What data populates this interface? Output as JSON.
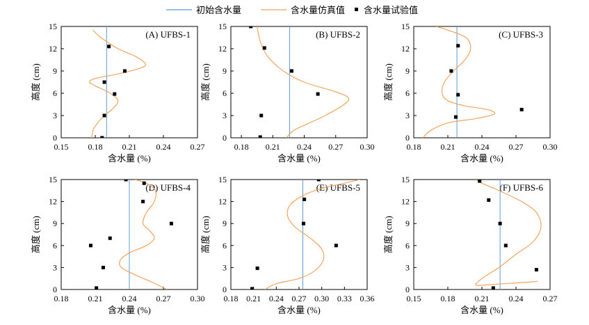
{
  "colors": {
    "initial": "#5b9bd5",
    "simulated": "#f4a460",
    "experimental": "#000000"
  },
  "legend": {
    "initial": "初始含水量",
    "simulated": "含水量仿真值",
    "experimental": "含水量试验值"
  },
  "chart_data": [
    {
      "type": "line",
      "title": "(A) UFBS-1",
      "xlabel": "含水量 (%)",
      "ylabel": "高度 (cm)",
      "xlim": [
        0.15,
        0.27
      ],
      "ylim": [
        0,
        15
      ],
      "xticks": [
        0.15,
        0.18,
        0.21,
        0.24,
        0.27
      ],
      "xtick_labels": [
        "0.15",
        "0.18",
        "0.21",
        "0.24",
        "0.27"
      ],
      "yticks": [
        0,
        3,
        6,
        9,
        12,
        15
      ],
      "ytick_labels": [
        "0",
        "3",
        "6",
        "9",
        "12",
        "15"
      ],
      "initial": 0.19,
      "simulated": [
        [
          0.177,
          0
        ],
        [
          0.178,
          1
        ],
        [
          0.182,
          2
        ],
        [
          0.188,
          3
        ],
        [
          0.196,
          4
        ],
        [
          0.2,
          5
        ],
        [
          0.193,
          6
        ],
        [
          0.18,
          7
        ],
        [
          0.175,
          7.5
        ],
        [
          0.18,
          8
        ],
        [
          0.2,
          8.6
        ],
        [
          0.22,
          9.4
        ],
        [
          0.224,
          10
        ],
        [
          0.215,
          11
        ],
        [
          0.2,
          12
        ],
        [
          0.185,
          13.5
        ],
        [
          0.178,
          14.5
        ]
      ],
      "experimental": [
        [
          0.186,
          0
        ],
        [
          0.188,
          3
        ],
        [
          0.197,
          5.9
        ],
        [
          0.188,
          7.5
        ],
        [
          0.206,
          9
        ],
        [
          0.192,
          12.3
        ]
      ]
    },
    {
      "type": "line",
      "title": "(B) UFBS-2",
      "xlabel": "含水量 (%)",
      "ylabel": "高度 (cm)",
      "xlim": [
        0.17,
        0.3
      ],
      "ylim": [
        0,
        15
      ],
      "xticks": [
        0.18,
        0.21,
        0.24,
        0.27,
        0.3
      ],
      "xtick_labels": [
        "0.18",
        "0.21",
        "0.24",
        "0.27",
        "0.30"
      ],
      "yticks": [
        0,
        3,
        6,
        9,
        12,
        15
      ],
      "ytick_labels": [
        "0",
        "3",
        "6",
        "9",
        "12",
        "15"
      ],
      "initial": 0.226,
      "simulated": [
        [
          0.223,
          0
        ],
        [
          0.23,
          1
        ],
        [
          0.245,
          2
        ],
        [
          0.26,
          3
        ],
        [
          0.278,
          4.5
        ],
        [
          0.282,
          5.4
        ],
        [
          0.27,
          6.2
        ],
        [
          0.24,
          7.5
        ],
        [
          0.22,
          9
        ],
        [
          0.205,
          11
        ],
        [
          0.198,
          13
        ],
        [
          0.195,
          15
        ]
      ],
      "experimental": [
        [
          0.198,
          0.1
        ],
        [
          0.199,
          3
        ],
        [
          0.253,
          5.9
        ],
        [
          0.228,
          9
        ],
        [
          0.202,
          12.1
        ],
        [
          0.189,
          15
        ]
      ]
    },
    {
      "type": "line",
      "title": "(C) UFBS-3",
      "xlabel": "含水量 (%)",
      "ylabel": "高度 (cm)",
      "xlim": [
        0.18,
        0.3
      ],
      "ylim": [
        0,
        15
      ],
      "xticks": [
        0.18,
        0.21,
        0.24,
        0.27,
        0.3
      ],
      "xtick_labels": [
        "0.18",
        "0.21",
        "0.24",
        "0.27",
        "0.30"
      ],
      "yticks": [
        0,
        3,
        6,
        9,
        12,
        15
      ],
      "ytick_labels": [
        "0",
        "3",
        "6",
        "9",
        "12",
        "15"
      ],
      "initial": 0.218,
      "simulated": [
        [
          0.188,
          0
        ],
        [
          0.195,
          1
        ],
        [
          0.21,
          2
        ],
        [
          0.235,
          2.6
        ],
        [
          0.251,
          3.2
        ],
        [
          0.245,
          3.8
        ],
        [
          0.225,
          4.3
        ],
        [
          0.21,
          5
        ],
        [
          0.205,
          6
        ],
        [
          0.207,
          7.5
        ],
        [
          0.215,
          9
        ],
        [
          0.225,
          10.5
        ],
        [
          0.23,
          12
        ],
        [
          0.226,
          13.5
        ],
        [
          0.21,
          14.5
        ],
        [
          0.2,
          15
        ]
      ],
      "experimental": [
        [
          0.217,
          2.8
        ],
        [
          0.275,
          3.8
        ],
        [
          0.219,
          5.8
        ],
        [
          0.213,
          9
        ],
        [
          0.219,
          12.4
        ]
      ]
    },
    {
      "type": "line",
      "title": "(D) UFBS-4",
      "xlabel": "含水量 (%)",
      "ylabel": "高度 (cm)",
      "xlim": [
        0.18,
        0.3
      ],
      "ylim": [
        0,
        15
      ],
      "xticks": [
        0.18,
        0.21,
        0.24,
        0.27,
        0.3
      ],
      "xtick_labels": [
        "0.18",
        "0.21",
        "0.24",
        "0.27",
        "0.30"
      ],
      "yticks": [
        0,
        3,
        6,
        9,
        12,
        15
      ],
      "ytick_labels": [
        "0",
        "3",
        "6",
        "9",
        "12",
        "15"
      ],
      "initial": 0.24,
      "simulated": [
        [
          0.273,
          0
        ],
        [
          0.26,
          1
        ],
        [
          0.245,
          2
        ],
        [
          0.233,
          3
        ],
        [
          0.232,
          4
        ],
        [
          0.24,
          5
        ],
        [
          0.255,
          6
        ],
        [
          0.262,
          7
        ],
        [
          0.258,
          8
        ],
        [
          0.252,
          9
        ],
        [
          0.255,
          10.5
        ],
        [
          0.262,
          12
        ],
        [
          0.263,
          13.5
        ],
        [
          0.255,
          14.5
        ],
        [
          0.245,
          15
        ]
      ],
      "experimental": [
        [
          0.211,
          0.2
        ],
        [
          0.217,
          3
        ],
        [
          0.223,
          7
        ],
        [
          0.206,
          6
        ],
        [
          0.277,
          9
        ],
        [
          0.252,
          12
        ],
        [
          0.253,
          14.5
        ],
        [
          0.237,
          15
        ]
      ]
    },
    {
      "type": "line",
      "title": "(E) UFBS-5",
      "xlabel": "含水量 (%)",
      "ylabel": "高度 (cm)",
      "xlim": [
        0.18,
        0.36
      ],
      "ylim": [
        0,
        15
      ],
      "xticks": [
        0.18,
        0.21,
        0.24,
        0.27,
        0.3,
        0.33,
        0.36
      ],
      "xtick_labels": [
        "0.18",
        "0.21",
        "0.24",
        "0.27",
        "0.30",
        "0.33",
        "0.36"
      ],
      "yticks": [
        0,
        3,
        6,
        9,
        12,
        15
      ],
      "ytick_labels": [
        "0",
        "3",
        "6",
        "9",
        "12",
        "15"
      ],
      "initial": 0.275,
      "simulated": [
        [
          0.225,
          0
        ],
        [
          0.24,
          0.8
        ],
        [
          0.27,
          1.5
        ],
        [
          0.29,
          2.5
        ],
        [
          0.302,
          4
        ],
        [
          0.3,
          5.5
        ],
        [
          0.285,
          7
        ],
        [
          0.265,
          8.5
        ],
        [
          0.255,
          10
        ],
        [
          0.258,
          11.5
        ],
        [
          0.275,
          12.8
        ],
        [
          0.3,
          13.8
        ],
        [
          0.33,
          14.5
        ],
        [
          0.35,
          15
        ]
      ],
      "experimental": [
        [
          0.208,
          0.1
        ],
        [
          0.215,
          2.9
        ],
        [
          0.319,
          6
        ],
        [
          0.276,
          9
        ],
        [
          0.277,
          12.3
        ],
        [
          0.296,
          15
        ]
      ]
    },
    {
      "type": "line",
      "title": "(F) UFBS-6",
      "xlabel": "含水量 (%)",
      "ylabel": "高度 (cm)",
      "xlim": [
        0.15,
        0.27
      ],
      "ylim": [
        0,
        15
      ],
      "xticks": [
        0.15,
        0.18,
        0.21,
        0.24,
        0.27
      ],
      "xtick_labels": [
        "0.15",
        "0.18",
        "0.21",
        "0.24",
        "0.27"
      ],
      "yticks": [
        0,
        3,
        6,
        9,
        12,
        15
      ],
      "ytick_labels": [
        "0",
        "3",
        "6",
        "9",
        "12",
        "15"
      ],
      "initial": 0.226,
      "simulated": [
        [
          0.259,
          1.1
        ],
        [
          0.24,
          0.9
        ],
        [
          0.22,
          0.7
        ],
        [
          0.205,
          0.6
        ],
        [
          0.21,
          1.5
        ],
        [
          0.225,
          3
        ],
        [
          0.24,
          4.8
        ],
        [
          0.255,
          6.5
        ],
        [
          0.262,
          8.5
        ],
        [
          0.258,
          10.5
        ],
        [
          0.245,
          12
        ],
        [
          0.225,
          13.5
        ],
        [
          0.21,
          14.5
        ],
        [
          0.205,
          15
        ]
      ],
      "experimental": [
        [
          0.22,
          0.2
        ],
        [
          0.258,
          2.7
        ],
        [
          0.231,
          6
        ],
        [
          0.226,
          9
        ],
        [
          0.216,
          12.2
        ],
        [
          0.208,
          14.8
        ]
      ]
    }
  ]
}
